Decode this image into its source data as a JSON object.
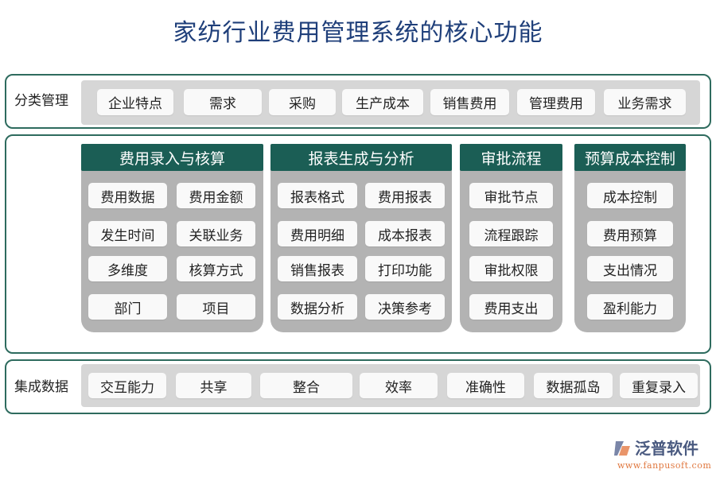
{
  "title": "家纺行业费用管理系统的核心功能",
  "top_row": {
    "label": "分类管理",
    "items": [
      "企业特点",
      "需求",
      "采购",
      "生产成本",
      "销售费用",
      "管理费用",
      "业务需求"
    ]
  },
  "columns": [
    {
      "header": "费用录入与核算",
      "items": [
        "费用数据",
        "费用金额",
        "发生时间",
        "关联业务",
        "多维度",
        "核算方式",
        "部门",
        "项目"
      ]
    },
    {
      "header": "报表生成与分析",
      "items": [
        "报表格式",
        "费用报表",
        "费用明细",
        "成本报表",
        "销售报表",
        "打印功能",
        "数据分析",
        "决策参考"
      ]
    },
    {
      "header": "审批流程",
      "items": [
        "审批节点",
        "流程跟踪",
        "审批权限",
        "费用支出"
      ]
    },
    {
      "header": "预算成本控制",
      "items": [
        "成本控制",
        "费用预算",
        "支出情况",
        "盈利能力"
      ]
    }
  ],
  "bottom_row": {
    "label": "集成数据",
    "items": [
      "交互能力",
      "共享",
      "整合",
      "效率",
      "准确性",
      "数据孤岛",
      "重复录入"
    ]
  },
  "logo": {
    "name": "泛普软件",
    "url": "www.fanpusoft.com"
  },
  "colors": {
    "frame": "#2e6b5e",
    "header": "#1b5e55",
    "title": "#1f3f7a"
  }
}
